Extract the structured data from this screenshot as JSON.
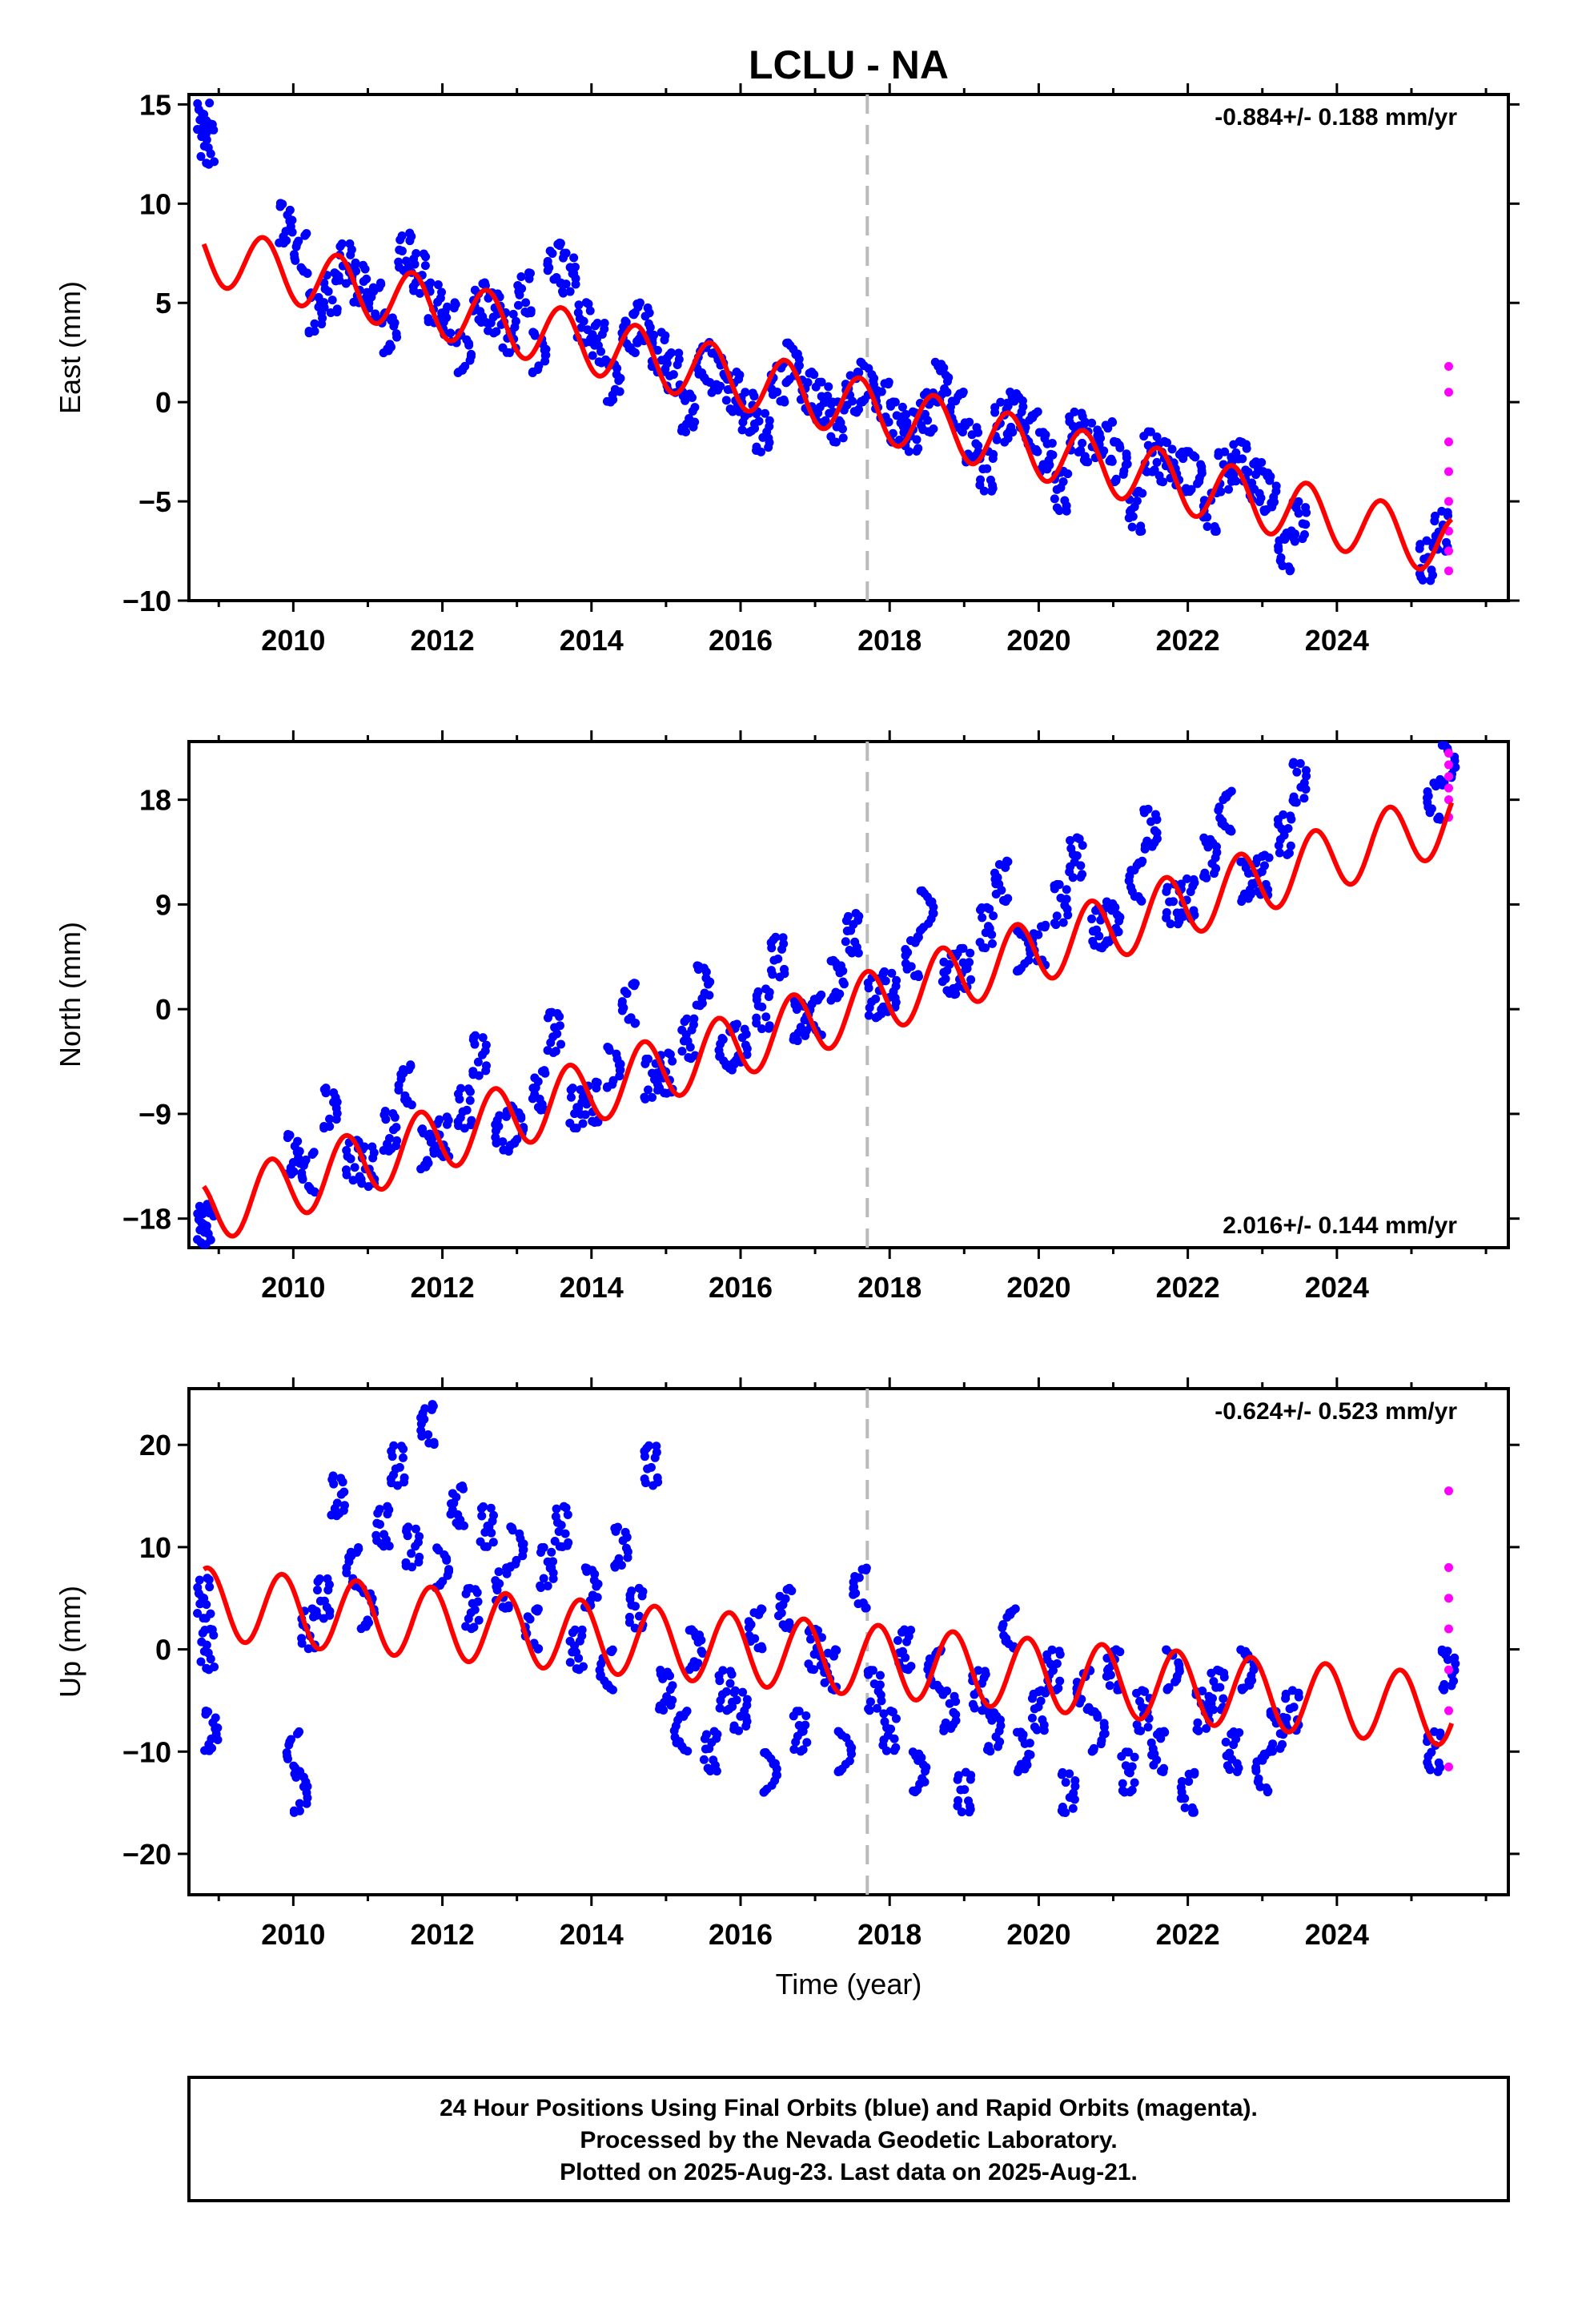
{
  "title": "LCLU - NA",
  "chart_data": [
    {
      "type": "scatter",
      "ylabel": "East (mm)",
      "xlabel": "",
      "xlim": [
        2008.6,
        2026.3
      ],
      "ylim": [
        -10,
        15.5
      ],
      "yticks": [
        15,
        10,
        5,
        0,
        -5,
        -10
      ],
      "yticklabels": [
        "15",
        "10",
        "5",
        "0",
        "−5",
        "−10"
      ],
      "xticks": [
        2010,
        2012,
        2014,
        2016,
        2018,
        2020,
        2022,
        2024
      ],
      "rate_label": "-0.884+/- 0.188 mm/yr",
      "rate_position": "top-right",
      "equipment_change_year": 2017.7,
      "series": [
        {
          "color": "#0000ff",
          "x": [
            2008.8,
            2008.85,
            2009.9,
            2010.1,
            2010.3,
            2010.5,
            2010.7,
            2010.9,
            2011.1,
            2011.3,
            2011.5,
            2011.7,
            2011.9,
            2012.1,
            2012.3,
            2012.5,
            2012.7,
            2012.9,
            2013.1,
            2013.3,
            2013.5,
            2013.7,
            2013.9,
            2014.1,
            2014.3,
            2014.5,
            2014.7,
            2014.9,
            2015.1,
            2015.3,
            2015.5,
            2015.7,
            2015.9,
            2016.1,
            2016.3,
            2016.5,
            2016.7,
            2016.9,
            2017.1,
            2017.3,
            2017.5,
            2017.7,
            2017.9,
            2018.1,
            2018.3,
            2018.5,
            2018.7,
            2018.9,
            2019.1,
            2019.3,
            2019.5,
            2019.7,
            2019.9,
            2020.1,
            2020.3,
            2020.5,
            2020.7,
            2020.9,
            2021.1,
            2021.3,
            2021.5,
            2021.7,
            2021.9,
            2022.1,
            2022.3,
            2022.5,
            2022.7,
            2022.9,
            2023.1,
            2023.3,
            2023.5,
            2025.2,
            2025.4
          ],
          "y": [
            14.5,
            13.0,
            9.0,
            7.5,
            4.5,
            5.5,
            7.0,
            6.0,
            5.0,
            3.5,
            7.5,
            6.5,
            5.0,
            4.0,
            2.5,
            5.0,
            4.5,
            3.5,
            5.5,
            2.5,
            7.0,
            6.5,
            4.0,
            3.0,
            1.0,
            3.5,
            4.0,
            2.5,
            1.5,
            -0.5,
            2.0,
            1.5,
            0.5,
            -0.5,
            -1.5,
            1.0,
            2.0,
            0.5,
            0.0,
            -1.0,
            0.5,
            1.0,
            0.0,
            -1.0,
            -1.5,
            -0.5,
            1.0,
            -0.5,
            -2.0,
            -3.5,
            -1.0,
            -0.5,
            -1.5,
            -2.5,
            -4.5,
            -1.5,
            -2.0,
            -2.0,
            -3.0,
            -5.5,
            -2.5,
            -3.0,
            -3.5,
            -3.5,
            -5.5,
            -3.5,
            -3.0,
            -4.0,
            -4.5,
            -7.5,
            -6.0,
            -8.0,
            -6.5
          ]
        },
        {
          "color": "#ff00ff",
          "x": [
            2025.5,
            2025.5,
            2025.5,
            2025.5,
            2025.5,
            2025.5,
            2025.5,
            2025.5
          ],
          "y": [
            1.8,
            0.5,
            -2.0,
            -3.5,
            -5.0,
            -6.5,
            -7.5,
            -8.5
          ]
        }
      ],
      "model": {
        "color": "#ff0000",
        "offset": 7.5,
        "rate": -0.884,
        "amp": 1.5,
        "phase": 0.35
      }
    },
    {
      "type": "scatter",
      "ylabel": "North (mm)",
      "xlabel": "",
      "xlim": [
        2008.6,
        2026.3
      ],
      "ylim": [
        -20.5,
        23
      ],
      "yticks": [
        18,
        9,
        0,
        -9,
        -18
      ],
      "yticklabels": [
        "18",
        "9",
        "0",
        "−9",
        "−18"
      ],
      "xticks": [
        2010,
        2012,
        2014,
        2016,
        2018,
        2020,
        2022,
        2024
      ],
      "rate_label": "2.016+/- 0.144 mm/yr",
      "rate_position": "bottom-right",
      "equipment_change_year": 2017.7,
      "series": [
        {
          "color": "#0000ff",
          "x": [
            2008.8,
            2008.85,
            2010.0,
            2010.2,
            2010.5,
            2010.8,
            2011.0,
            2011.3,
            2011.5,
            2011.8,
            2012.0,
            2012.3,
            2012.5,
            2012.8,
            2013.0,
            2013.3,
            2013.5,
            2013.8,
            2014.0,
            2014.3,
            2014.5,
            2014.8,
            2015.0,
            2015.3,
            2015.5,
            2015.8,
            2016.0,
            2016.3,
            2016.5,
            2016.8,
            2017.0,
            2017.3,
            2017.5,
            2017.8,
            2018.0,
            2018.3,
            2018.5,
            2018.8,
            2019.0,
            2019.3,
            2019.5,
            2019.8,
            2020.0,
            2020.3,
            2020.5,
            2020.8,
            2021.0,
            2021.3,
            2021.5,
            2021.8,
            2022.0,
            2022.3,
            2022.5,
            2022.8,
            2023.0,
            2023.3,
            2023.5,
            2025.3,
            2025.5
          ],
          "y": [
            -18.5,
            -19.0,
            -12.5,
            -14.0,
            -8.5,
            -13.0,
            -13.5,
            -10.5,
            -6.5,
            -12.0,
            -11.0,
            -8.5,
            -4.0,
            -10.5,
            -10.0,
            -7.0,
            -2.0,
            -8.5,
            -8.0,
            -5.0,
            0.5,
            -6.0,
            -5.5,
            -2.5,
            2.0,
            -3.5,
            -3.0,
            0.0,
            4.5,
            -1.0,
            -0.5,
            2.5,
            6.5,
            1.0,
            1.5,
            4.5,
            8.5,
            3.0,
            3.5,
            7.0,
            11.0,
            5.0,
            5.5,
            9.0,
            13.0,
            7.0,
            7.5,
            11.0,
            15.5,
            9.0,
            9.5,
            13.0,
            17.0,
            11.0,
            11.5,
            15.0,
            19.5,
            18.0,
            21.0
          ]
        },
        {
          "color": "#ff00ff",
          "x": [
            2025.5,
            2025.5,
            2025.5,
            2025.5,
            2025.5,
            2025.5
          ],
          "y": [
            22.0,
            21.0,
            20.0,
            19.0,
            18.0,
            16.5
          ]
        }
      ],
      "model": {
        "color": "#ff0000",
        "offset": -17.5,
        "rate": 2.016,
        "amp": 2.8,
        "phase": 0.45
      }
    },
    {
      "type": "scatter",
      "ylabel": "Up (mm)",
      "xlabel": "Time (year)",
      "xlim": [
        2008.6,
        2026.3
      ],
      "ylim": [
        -24,
        25.5
      ],
      "yticks": [
        20,
        10,
        0,
        -10,
        -20
      ],
      "yticklabels": [
        "20",
        "10",
        "0",
        "−10",
        "−20"
      ],
      "xticks": [
        2010,
        2012,
        2014,
        2016,
        2018,
        2020,
        2022,
        2024
      ],
      "rate_label": "-0.624+/- 0.523 mm/yr",
      "rate_position": "top-right",
      "equipment_change_year": 2017.7,
      "series": [
        {
          "color": "#0000ff",
          "x": [
            2008.8,
            2008.85,
            2008.9,
            2010.0,
            2010.1,
            2010.2,
            2010.4,
            2010.6,
            2010.8,
            2011.0,
            2011.2,
            2011.4,
            2011.6,
            2011.8,
            2012.0,
            2012.2,
            2012.4,
            2012.6,
            2012.8,
            2013.0,
            2013.2,
            2013.4,
            2013.6,
            2013.8,
            2014.0,
            2014.2,
            2014.4,
            2014.6,
            2014.8,
            2015.0,
            2015.2,
            2015.4,
            2015.6,
            2015.8,
            2016.0,
            2016.2,
            2016.4,
            2016.6,
            2016.8,
            2017.0,
            2017.2,
            2017.4,
            2017.6,
            2017.8,
            2018.0,
            2018.2,
            2018.4,
            2018.6,
            2018.8,
            2019.0,
            2019.2,
            2019.4,
            2019.6,
            2019.8,
            2020.0,
            2020.2,
            2020.4,
            2020.6,
            2020.8,
            2021.0,
            2021.2,
            2021.4,
            2021.6,
            2021.8,
            2022.0,
            2022.2,
            2022.4,
            2022.6,
            2022.8,
            2023.0,
            2023.2,
            2023.4,
            2025.3,
            2025.5
          ],
          "y": [
            5.0,
            0.0,
            -8.0,
            -10.0,
            -14.0,
            2.0,
            5.0,
            15.0,
            8.0,
            4.0,
            12.0,
            18.0,
            10.0,
            22.0,
            8.0,
            14.0,
            4.0,
            12.0,
            6.0,
            10.0,
            2.0,
            8.0,
            12.0,
            0.0,
            6.0,
            -2.0,
            10.0,
            4.0,
            18.0,
            -4.0,
            -8.0,
            0.0,
            -10.0,
            -4.0,
            -6.0,
            2.0,
            -12.0,
            4.0,
            -8.0,
            0.0,
            -2.0,
            -10.0,
            6.0,
            -4.0,
            -8.0,
            0.0,
            -12.0,
            -2.0,
            -6.0,
            -14.0,
            -4.0,
            -8.0,
            2.0,
            -10.0,
            -6.0,
            -2.0,
            -14.0,
            -4.0,
            -8.0,
            -2.0,
            -12.0,
            -6.0,
            -10.0,
            -2.0,
            -14.0,
            -6.0,
            -4.0,
            -10.0,
            -2.0,
            -12.0,
            -8.0,
            -6.0,
            -10.0,
            -2.0
          ]
        },
        {
          "color": "#ff00ff",
          "x": [
            2025.5,
            2025.5,
            2025.5,
            2025.5,
            2025.5,
            2025.5,
            2025.5
          ],
          "y": [
            15.5,
            8.0,
            5.0,
            2.0,
            -2.0,
            -6.0,
            -11.5
          ]
        }
      ],
      "model": {
        "color": "#ff0000",
        "offset": 4.5,
        "rate": -0.624,
        "amp": 3.5,
        "phase": 0.6
      }
    }
  ],
  "footer": {
    "line1": "24 Hour Positions Using Final Orbits (blue) and Rapid Orbits (magenta).",
    "line2": "Processed by the Nevada Geodetic Laboratory.",
    "line3": "Plotted on 2025-Aug-23. Last data on 2025-Aug-21."
  }
}
